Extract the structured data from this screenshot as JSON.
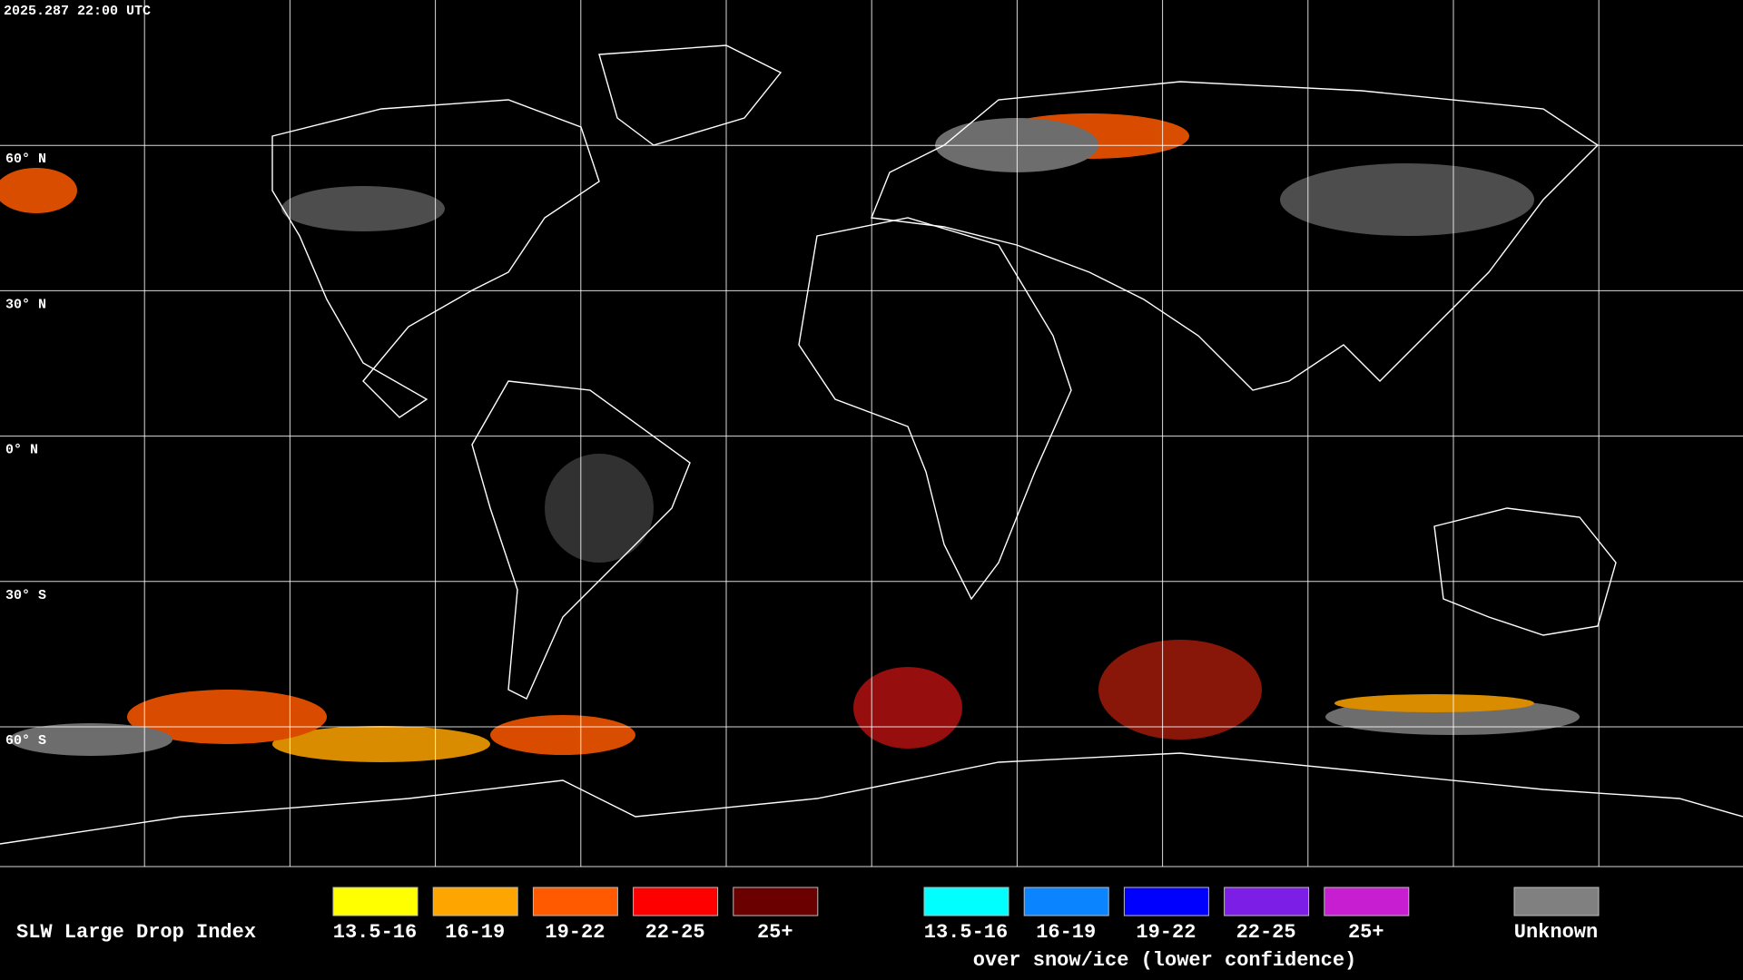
{
  "header": {
    "timestamp": "2025.287 22:00 UTC"
  },
  "map": {
    "lat_labels": [
      "60° N",
      "30° N",
      "0° N",
      "30° S",
      "60° S"
    ]
  },
  "legend": {
    "title": "SLW Large Drop Index",
    "standard": [
      {
        "label": "13.5-16",
        "color": "#ffff00"
      },
      {
        "label": "16-19",
        "color": "#ffa500"
      },
      {
        "label": "19-22",
        "color": "#ff5a00"
      },
      {
        "label": "22-25",
        "color": "#ff0000"
      },
      {
        "label": "25+",
        "color": "#6b0000"
      }
    ],
    "snow": [
      {
        "label": "13.5-16",
        "color": "#00ffff"
      },
      {
        "label": "16-19",
        "color": "#0a84ff"
      },
      {
        "label": "19-22",
        "color": "#0000ff"
      },
      {
        "label": "22-25",
        "color": "#7d1ee6"
      },
      {
        "label": "25+",
        "color": "#c81ed2"
      }
    ],
    "snow_note": "over snow/ice (lower confidence)",
    "unknown": {
      "label": "Unknown",
      "color": "#808080"
    }
  }
}
